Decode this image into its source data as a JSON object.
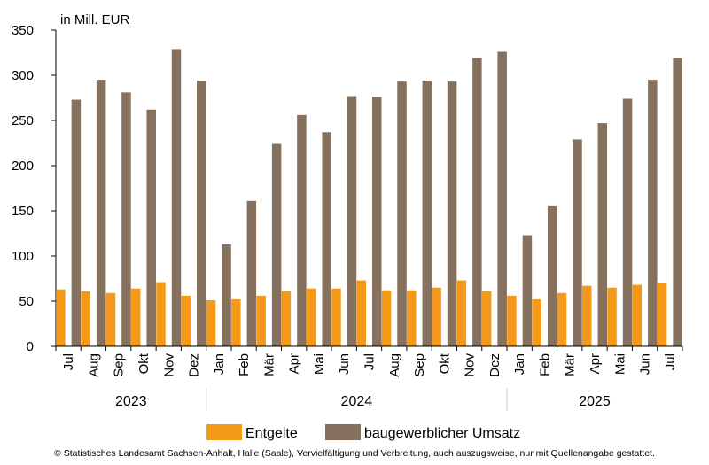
{
  "chart_data": {
    "type": "bar",
    "unit_label": "in Mill. EUR",
    "ylim": [
      0,
      350
    ],
    "yticks": [
      0,
      50,
      100,
      150,
      200,
      250,
      300,
      350
    ],
    "categories": [
      "Jul",
      "Aug",
      "Sep",
      "Okt",
      "Nov",
      "Dez",
      "Jan",
      "Feb",
      "Mär",
      "Apr",
      "Mai",
      "Jun",
      "Jul",
      "Aug",
      "Sep",
      "Okt",
      "Nov",
      "Dez",
      "Jan",
      "Feb",
      "Mär",
      "Apr",
      "Mai",
      "Jun",
      "Jul"
    ],
    "year_groups": [
      {
        "label": "2023",
        "start": 0,
        "end": 5
      },
      {
        "label": "2024",
        "start": 6,
        "end": 17
      },
      {
        "label": "2025",
        "start": 18,
        "end": 24
      }
    ],
    "series": [
      {
        "name": "Entgelte",
        "color": "#F4991A",
        "values": [
          63,
          61,
          59,
          64,
          71,
          56,
          51,
          52,
          56,
          61,
          64,
          64,
          73,
          62,
          62,
          65,
          73,
          61,
          56,
          52,
          59,
          67,
          65,
          68,
          70
        ]
      },
      {
        "name": "baugewerblicher Umsatz",
        "color": "#86715F",
        "values": [
          273,
          295,
          281,
          262,
          329,
          294,
          113,
          161,
          224,
          256,
          237,
          277,
          276,
          293,
          294,
          293,
          319,
          326,
          123,
          155,
          229,
          247,
          274,
          295,
          319
        ]
      }
    ],
    "grid": false,
    "legend_position": "bottom"
  },
  "footer": "© Statistisches Landesamt Sachsen-Anhalt, Halle (Saale), Vervielfältigung und Verbreitung, auch auszugsweise, nur mit Quellenangabe gestattet.",
  "colors": {
    "axis": "#000000",
    "separator": "#c8c8c8"
  }
}
